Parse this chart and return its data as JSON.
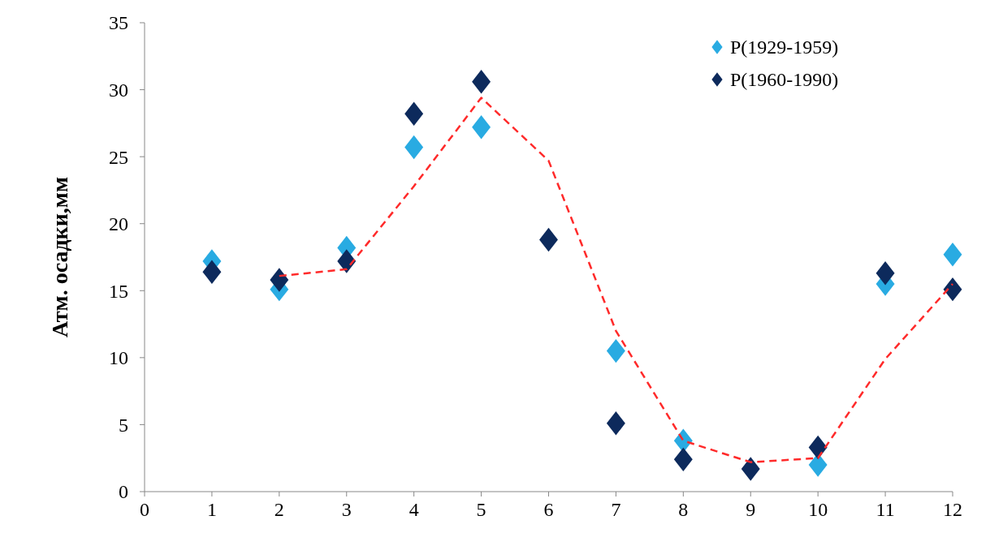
{
  "chart_data": {
    "type": "scatter",
    "ylabel": "Атм. осадки,мм",
    "x": [
      1,
      2,
      3,
      4,
      5,
      6,
      7,
      8,
      9,
      10,
      11,
      12
    ],
    "xlim": [
      0,
      12
    ],
    "xticks": [
      0,
      1,
      2,
      3,
      4,
      5,
      6,
      7,
      8,
      9,
      10,
      11,
      12
    ],
    "ylim": [
      0,
      35
    ],
    "yticks": [
      0,
      5,
      10,
      15,
      20,
      25,
      30,
      35
    ],
    "grid": false,
    "legend": "top right",
    "marker": "diamond",
    "series": [
      {
        "name": "P(1929-1959)",
        "color": "#29abe2",
        "values": [
          17.2,
          15.1,
          18.2,
          25.7,
          27.2,
          null,
          10.5,
          3.8,
          null,
          2.0,
          15.5,
          17.7
        ]
      },
      {
        "name": "P(1960-1990)",
        "color": "#0d2a5c",
        "values": [
          16.4,
          15.8,
          17.2,
          28.2,
          30.6,
          18.8,
          5.1,
          2.4,
          1.7,
          3.3,
          16.3,
          15.1
        ]
      },
      {
        "type": "line",
        "color": "#ff2a2a",
        "line_style": "dashed",
        "marker": "none",
        "x": [
          2,
          3,
          4,
          5,
          6,
          7,
          8,
          9,
          10,
          11,
          12
        ],
        "values": [
          16.1,
          16.6,
          22.8,
          29.4,
          24.7,
          12.0,
          3.8,
          2.2,
          2.5,
          9.9,
          15.5
        ]
      }
    ]
  }
}
